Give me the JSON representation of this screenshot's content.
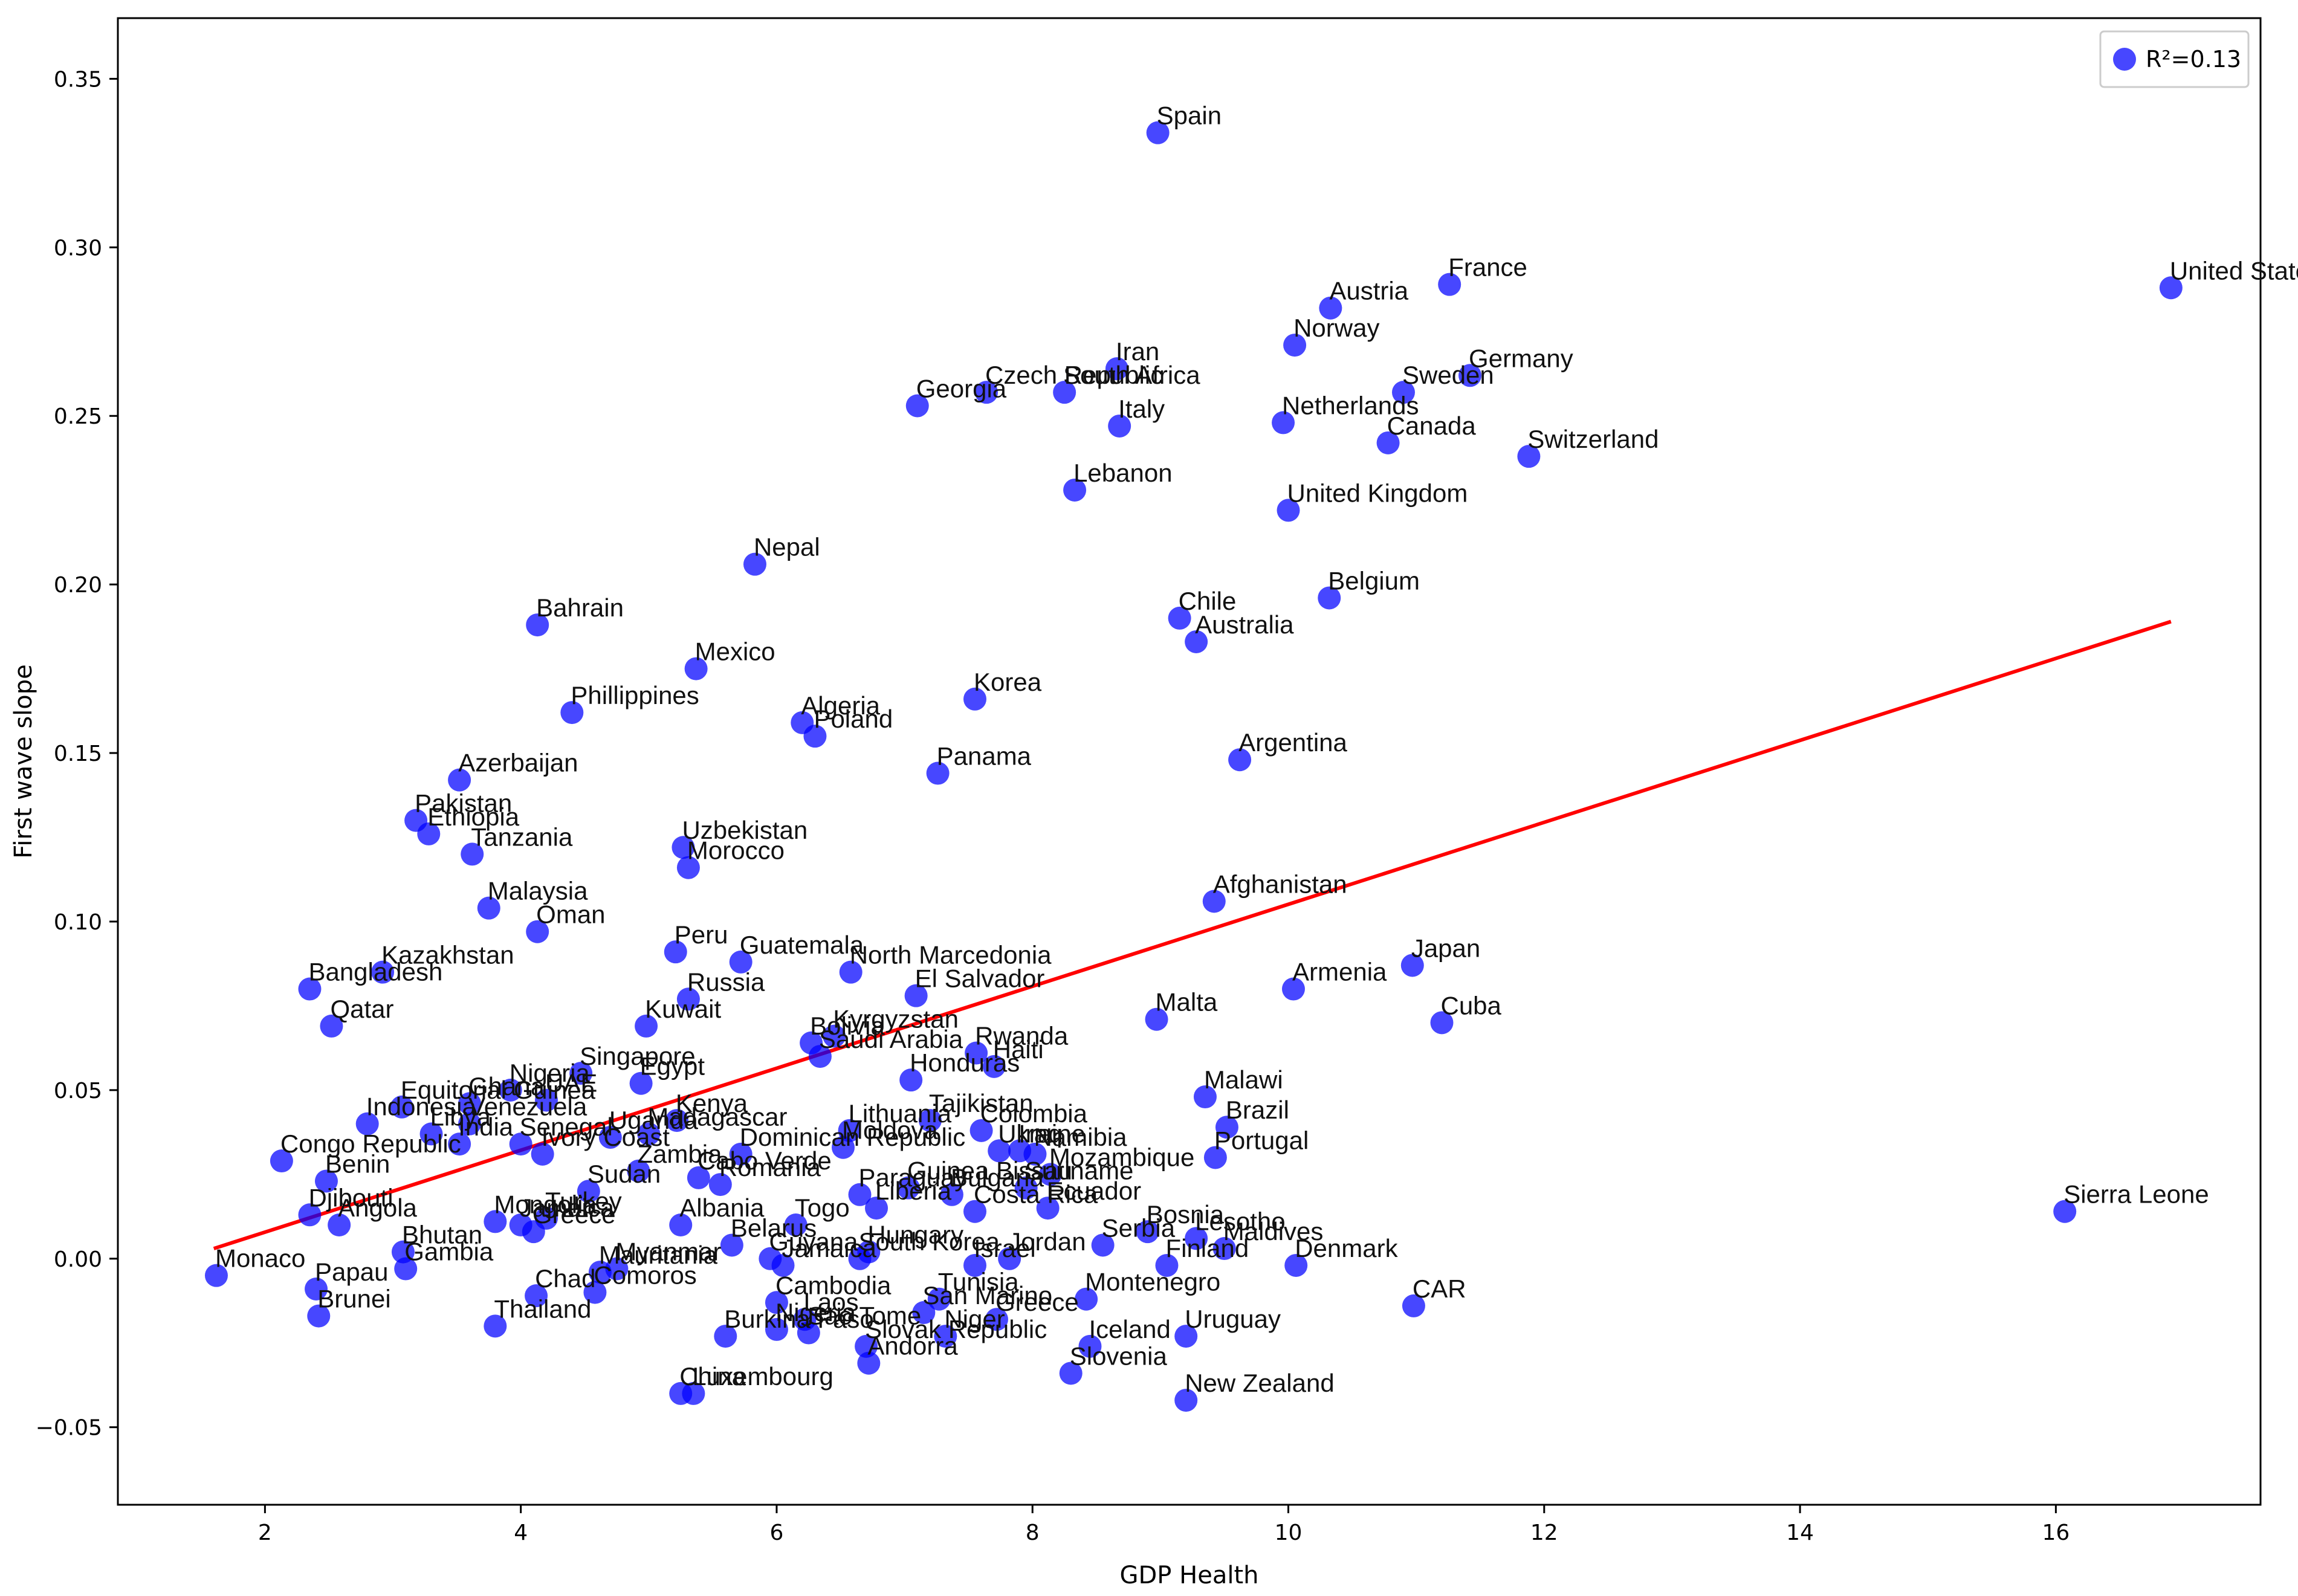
{
  "chart_data": {
    "type": "scatter",
    "xlabel": "GDP Health",
    "ylabel": "First wave slope",
    "xlim": [
      0.85,
      17.6
    ],
    "ylim": [
      -0.073,
      0.368
    ],
    "xticks": [
      2,
      4,
      6,
      8,
      10,
      12,
      14,
      16
    ],
    "xtick_labels": [
      "2",
      "4",
      "6",
      "8",
      "10",
      "12",
      "14",
      "16"
    ],
    "yticks": [
      -0.05,
      0.0,
      0.05,
      0.1,
      0.15,
      0.2,
      0.25,
      0.3,
      0.35
    ],
    "ytick_labels": [
      "−0.05",
      "0.00",
      "0.05",
      "0.10",
      "0.15",
      "0.20",
      "0.25",
      "0.30",
      "0.35"
    ],
    "grid": false,
    "legend": {
      "position": "top-right",
      "label": "R²=0.13",
      "color": "#0000ff"
    },
    "point_color": "#0000ff",
    "fit_color": "#ff0000",
    "fit_line": {
      "x": [
        1.6,
        16.9
      ],
      "y": [
        0.003,
        0.189
      ]
    },
    "points": [
      {
        "label": "Spain",
        "x": 8.98,
        "y": 0.334
      },
      {
        "label": "United States",
        "x": 16.9,
        "y": 0.288
      },
      {
        "label": "France",
        "x": 11.26,
        "y": 0.289
      },
      {
        "label": "Austria",
        "x": 10.33,
        "y": 0.282
      },
      {
        "label": "Norway",
        "x": 10.05,
        "y": 0.271
      },
      {
        "label": "Germany",
        "x": 11.42,
        "y": 0.262
      },
      {
        "label": "Sweden",
        "x": 10.9,
        "y": 0.257
      },
      {
        "label": "Iran",
        "x": 8.66,
        "y": 0.264
      },
      {
        "label": "Czech Republic",
        "x": 7.64,
        "y": 0.257
      },
      {
        "label": "South Africa",
        "x": 8.25,
        "y": 0.257
      },
      {
        "label": "Georgia",
        "x": 7.1,
        "y": 0.253
      },
      {
        "label": "Italy",
        "x": 8.68,
        "y": 0.247
      },
      {
        "label": "Netherlands",
        "x": 9.96,
        "y": 0.248
      },
      {
        "label": "Canada",
        "x": 10.78,
        "y": 0.242
      },
      {
        "label": "Switzerland",
        "x": 11.88,
        "y": 0.238
      },
      {
        "label": "Lebanon",
        "x": 8.33,
        "y": 0.228
      },
      {
        "label": "United Kingdom",
        "x": 10.0,
        "y": 0.222
      },
      {
        "label": "Nepal",
        "x": 5.83,
        "y": 0.206
      },
      {
        "label": "Belgium",
        "x": 10.32,
        "y": 0.196
      },
      {
        "label": "Chile",
        "x": 9.15,
        "y": 0.19
      },
      {
        "label": "Bahrain",
        "x": 4.13,
        "y": 0.188
      },
      {
        "label": "Australia",
        "x": 9.28,
        "y": 0.183
      },
      {
        "label": "Mexico",
        "x": 5.37,
        "y": 0.175
      },
      {
        "label": "Korea",
        "x": 7.55,
        "y": 0.166
      },
      {
        "label": "Phillippines",
        "x": 4.4,
        "y": 0.162
      },
      {
        "label": "Algeria",
        "x": 6.2,
        "y": 0.159
      },
      {
        "label": "Poland",
        "x": 6.3,
        "y": 0.155
      },
      {
        "label": "Argentina",
        "x": 9.62,
        "y": 0.148
      },
      {
        "label": "Panama",
        "x": 7.26,
        "y": 0.144
      },
      {
        "label": "Azerbaijan",
        "x": 3.52,
        "y": 0.142
      },
      {
        "label": "Pakistan",
        "x": 3.18,
        "y": 0.13
      },
      {
        "label": "Ethiopia",
        "x": 3.28,
        "y": 0.126
      },
      {
        "label": "Uzbekistan",
        "x": 5.27,
        "y": 0.122
      },
      {
        "label": "Tanzania",
        "x": 3.62,
        "y": 0.12
      },
      {
        "label": "Morocco",
        "x": 5.31,
        "y": 0.116
      },
      {
        "label": "Afghanistan",
        "x": 9.42,
        "y": 0.106
      },
      {
        "label": "Malaysia",
        "x": 3.75,
        "y": 0.104
      },
      {
        "label": "Oman",
        "x": 4.13,
        "y": 0.097
      },
      {
        "label": "Peru",
        "x": 5.21,
        "y": 0.091
      },
      {
        "label": "Japan",
        "x": 10.97,
        "y": 0.087
      },
      {
        "label": "Guatemala",
        "x": 5.72,
        "y": 0.088
      },
      {
        "label": "North Marcedonia",
        "x": 6.58,
        "y": 0.085
      },
      {
        "label": "Kazakhstan",
        "x": 2.92,
        "y": 0.085
      },
      {
        "label": "Bangladesh",
        "x": 2.35,
        "y": 0.08
      },
      {
        "label": "Armenia",
        "x": 10.04,
        "y": 0.08
      },
      {
        "label": "El Salvador",
        "x": 7.09,
        "y": 0.078
      },
      {
        "label": "Russia",
        "x": 5.31,
        "y": 0.077
      },
      {
        "label": "Malta",
        "x": 8.97,
        "y": 0.071
      },
      {
        "label": "Cuba",
        "x": 11.2,
        "y": 0.07
      },
      {
        "label": "Qatar",
        "x": 2.52,
        "y": 0.069
      },
      {
        "label": "Kuwait",
        "x": 4.98,
        "y": 0.069
      },
      {
        "label": "Kyrgyzstan",
        "x": 6.45,
        "y": 0.066
      },
      {
        "label": "Bolivia",
        "x": 6.27,
        "y": 0.064
      },
      {
        "label": "Saudi Arabia",
        "x": 6.34,
        "y": 0.06
      },
      {
        "label": "Rwanda",
        "x": 7.56,
        "y": 0.061
      },
      {
        "label": "Haiti",
        "x": 7.7,
        "y": 0.057
      },
      {
        "label": "Singapore",
        "x": 4.47,
        "y": 0.055
      },
      {
        "label": "Honduras",
        "x": 7.05,
        "y": 0.053
      },
      {
        "label": "Egypt",
        "x": 4.94,
        "y": 0.052
      },
      {
        "label": "Nigeria",
        "x": 3.92,
        "y": 0.05
      },
      {
        "label": "Malawi",
        "x": 9.35,
        "y": 0.048
      },
      {
        "label": "UAE",
        "x": 4.2,
        "y": 0.047
      },
      {
        "label": "Equitorial Guinea",
        "x": 3.07,
        "y": 0.045
      },
      {
        "label": "Ghana",
        "x": 3.6,
        "y": 0.046
      },
      {
        "label": "Tajikistan",
        "x": 7.2,
        "y": 0.041
      },
      {
        "label": "Kenya",
        "x": 5.22,
        "y": 0.041
      },
      {
        "label": "Indonesia",
        "x": 2.8,
        "y": 0.04
      },
      {
        "label": "Brazil",
        "x": 9.52,
        "y": 0.039
      },
      {
        "label": "Colombia",
        "x": 7.6,
        "y": 0.038
      },
      {
        "label": "Lithuania",
        "x": 6.57,
        "y": 0.038
      },
      {
        "label": "Madagascar",
        "x": 5.0,
        "y": 0.037
      },
      {
        "label": "Venezuela",
        "x": 3.6,
        "y": 0.04
      },
      {
        "label": "Libya",
        "x": 3.3,
        "y": 0.037
      },
      {
        "label": "India",
        "x": 3.52,
        "y": 0.034
      },
      {
        "label": "Senegal",
        "x": 4.0,
        "y": 0.034
      },
      {
        "label": "Ivory Coast",
        "x": 4.17,
        "y": 0.031
      },
      {
        "label": "Uganda",
        "x": 4.7,
        "y": 0.036
      },
      {
        "label": "Dominican Republic",
        "x": 5.72,
        "y": 0.031
      },
      {
        "label": "Moldova",
        "x": 6.52,
        "y": 0.033
      },
      {
        "label": "Ukraine",
        "x": 7.74,
        "y": 0.032
      },
      {
        "label": "Iraq",
        "x": 7.9,
        "y": 0.032
      },
      {
        "label": "Namibia",
        "x": 8.02,
        "y": 0.031
      },
      {
        "label": "Portugal",
        "x": 9.43,
        "y": 0.03
      },
      {
        "label": "Congo Republic",
        "x": 2.13,
        "y": 0.029
      },
      {
        "label": "Mozambique",
        "x": 8.14,
        "y": 0.025
      },
      {
        "label": "Zambia",
        "x": 4.92,
        "y": 0.026
      },
      {
        "label": "Cabo Verde",
        "x": 5.39,
        "y": 0.024
      },
      {
        "label": "Romania",
        "x": 5.56,
        "y": 0.022
      },
      {
        "label": "Benin",
        "x": 2.48,
        "y": 0.023
      },
      {
        "label": "Guinea Bissau",
        "x": 7.03,
        "y": 0.021
      },
      {
        "label": "Suriname",
        "x": 7.95,
        "y": 0.021
      },
      {
        "label": "Bulgaria",
        "x": 7.37,
        "y": 0.019
      },
      {
        "label": "Paraguay",
        "x": 6.65,
        "y": 0.019
      },
      {
        "label": "Sudan",
        "x": 4.53,
        "y": 0.02
      },
      {
        "label": "Ecuador",
        "x": 8.12,
        "y": 0.015
      },
      {
        "label": "Costa Rica",
        "x": 7.55,
        "y": 0.014
      },
      {
        "label": "Liberia",
        "x": 6.78,
        "y": 0.015
      },
      {
        "label": "Sierra Leone",
        "x": 16.07,
        "y": 0.014
      },
      {
        "label": "Djibouti",
        "x": 2.35,
        "y": 0.013
      },
      {
        "label": "Turkey",
        "x": 4.2,
        "y": 0.012
      },
      {
        "label": "Angola",
        "x": 2.58,
        "y": 0.01
      },
      {
        "label": "Mongolia",
        "x": 3.8,
        "y": 0.011
      },
      {
        "label": "Jamaica",
        "x": 4.0,
        "y": 0.01
      },
      {
        "label": "Greece",
        "x": 4.1,
        "y": 0.008
      },
      {
        "label": "Albania",
        "x": 5.25,
        "y": 0.01
      },
      {
        "label": "Togo",
        "x": 6.15,
        "y": 0.01
      },
      {
        "label": "Bosnia",
        "x": 8.9,
        "y": 0.008
      },
      {
        "label": "Lesotho",
        "x": 9.28,
        "y": 0.006
      },
      {
        "label": "Maldives",
        "x": 9.5,
        "y": 0.003
      },
      {
        "label": "Serbia",
        "x": 8.55,
        "y": 0.004
      },
      {
        "label": "Belarus",
        "x": 5.65,
        "y": 0.004
      },
      {
        "label": "Hungary",
        "x": 6.72,
        "y": 0.002
      },
      {
        "label": "Bhutan",
        "x": 3.08,
        "y": 0.002
      },
      {
        "label": "Jordan",
        "x": 7.82,
        "y": 0.0
      },
      {
        "label": "Israel",
        "x": 7.55,
        "y": -0.002
      },
      {
        "label": "Finland",
        "x": 9.05,
        "y": -0.002
      },
      {
        "label": "Denmark",
        "x": 10.06,
        "y": -0.002
      },
      {
        "label": "South Korea",
        "x": 6.65,
        "y": 0.0
      },
      {
        "label": "Guyana",
        "x": 5.95,
        "y": 0.0
      },
      {
        "label": "Jamaica",
        "x": 6.05,
        "y": -0.002
      },
      {
        "label": "Gambia",
        "x": 3.1,
        "y": -0.003
      },
      {
        "label": "Monaco",
        "x": 1.62,
        "y": -0.005
      },
      {
        "label": "Mauritania",
        "x": 4.62,
        "y": -0.004
      },
      {
        "label": "Myanmar",
        "x": 4.75,
        "y": -0.003
      },
      {
        "label": "Papau",
        "x": 2.4,
        "y": -0.009
      },
      {
        "label": "Chad",
        "x": 4.12,
        "y": -0.011
      },
      {
        "label": "Comoros",
        "x": 4.58,
        "y": -0.01
      },
      {
        "label": "Montenegro",
        "x": 8.42,
        "y": -0.012
      },
      {
        "label": "CAR",
        "x": 10.98,
        "y": -0.014
      },
      {
        "label": "Tunisia",
        "x": 7.27,
        "y": -0.012
      },
      {
        "label": "Cambodia",
        "x": 6.0,
        "y": -0.013
      },
      {
        "label": "San Marino",
        "x": 7.15,
        "y": -0.016
      },
      {
        "label": "Brunei",
        "x": 2.42,
        "y": -0.017
      },
      {
        "label": "Greece",
        "x": 7.72,
        "y": -0.018
      },
      {
        "label": "Thailand",
        "x": 3.8,
        "y": -0.02
      },
      {
        "label": "Laos",
        "x": 6.22,
        "y": -0.018
      },
      {
        "label": "Burkina Faso",
        "x": 5.6,
        "y": -0.023
      },
      {
        "label": "Sao Tome",
        "x": 6.25,
        "y": -0.022
      },
      {
        "label": "Nigeria",
        "x": 6.0,
        "y": -0.021
      },
      {
        "label": "Niger",
        "x": 7.32,
        "y": -0.023
      },
      {
        "label": "Uruguay",
        "x": 9.2,
        "y": -0.023
      },
      {
        "label": "Iceland",
        "x": 8.45,
        "y": -0.026
      },
      {
        "label": "Slovak Republic",
        "x": 6.7,
        "y": -0.026
      },
      {
        "label": "Slovenia",
        "x": 8.3,
        "y": -0.034
      },
      {
        "label": "Andorra",
        "x": 6.72,
        "y": -0.031
      },
      {
        "label": "Luxembourg",
        "x": 5.35,
        "y": -0.04
      },
      {
        "label": "China",
        "x": 5.25,
        "y": -0.04
      },
      {
        "label": "New Zealand",
        "x": 9.2,
        "y": -0.042
      }
    ]
  }
}
